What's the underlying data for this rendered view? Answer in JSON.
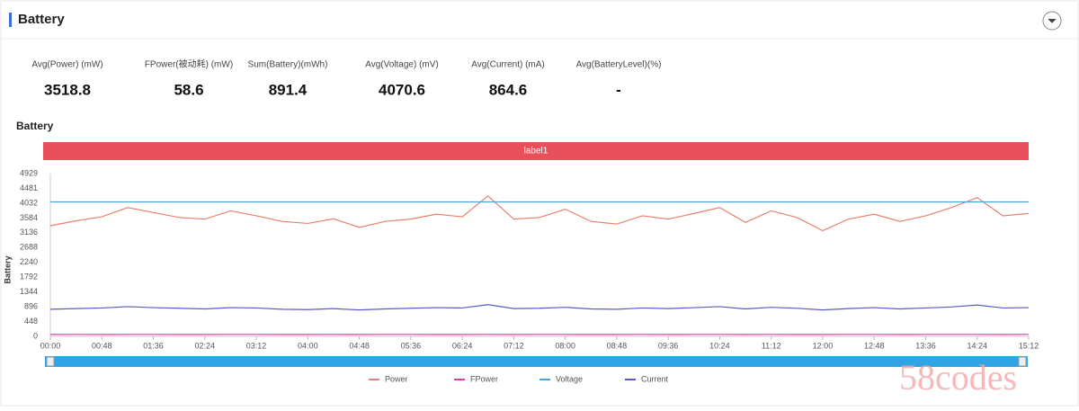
{
  "header": {
    "title": "Battery"
  },
  "stats": [
    {
      "label": "Avg(Power) (mW)",
      "value": 3518.8
    },
    {
      "label": "FPower(被动耗) (mW)",
      "value": 58.6
    },
    {
      "label": "Sum(Battery)(mWh)",
      "value": 891.4
    },
    {
      "label": "Avg(Voltage) (mV)",
      "value": 4070.6
    },
    {
      "label": "Avg(Current) (mA)",
      "value": 864.6
    },
    {
      "label": "Avg(BatteryLevel)(%)",
      "value": "-"
    }
  ],
  "watermark": "58codes",
  "chart_data": {
    "type": "line",
    "title": "Battery",
    "band_label": "label1",
    "y_label": "Battery",
    "x": [
      0,
      24,
      48,
      72,
      96,
      120,
      144,
      168,
      192,
      216,
      240,
      264,
      288,
      312,
      336,
      360,
      384,
      408,
      432,
      456,
      480,
      504,
      528,
      552,
      576,
      600,
      624,
      648,
      672,
      696,
      720,
      744,
      768,
      792,
      816,
      840,
      864,
      888,
      912
    ],
    "xlim": [
      0,
      912
    ],
    "xticks": [
      {
        "value": 0,
        "label": "00:00"
      },
      {
        "value": 48,
        "label": "00:48"
      },
      {
        "value": 96,
        "label": "01:36"
      },
      {
        "value": 144,
        "label": "02:24"
      },
      {
        "value": 192,
        "label": "03:12"
      },
      {
        "value": 240,
        "label": "04:00"
      },
      {
        "value": 288,
        "label": "04:48"
      },
      {
        "value": 336,
        "label": "05:36"
      },
      {
        "value": 384,
        "label": "06:24"
      },
      {
        "value": 432,
        "label": "07:12"
      },
      {
        "value": 480,
        "label": "08:00"
      },
      {
        "value": 528,
        "label": "08:48"
      },
      {
        "value": 576,
        "label": "09:36"
      },
      {
        "value": 624,
        "label": "10:24"
      },
      {
        "value": 672,
        "label": "11:12"
      },
      {
        "value": 720,
        "label": "12:00"
      },
      {
        "value": 768,
        "label": "12:48"
      },
      {
        "value": 816,
        "label": "13:36"
      },
      {
        "value": 864,
        "label": "14:24"
      },
      {
        "value": 912,
        "label": "15:12"
      }
    ],
    "ylim": [
      0,
      4929
    ],
    "yticks": [
      0,
      448,
      896,
      1344,
      1792,
      2240,
      2688,
      3136,
      3584,
      4032,
      4481,
      4929
    ],
    "grid": false,
    "legend": "bottom",
    "series": [
      {
        "name": "Power",
        "color": "#e8826b",
        "values": [
          3350,
          3500,
          3620,
          3900,
          3750,
          3600,
          3550,
          3800,
          3650,
          3480,
          3420,
          3560,
          3300,
          3480,
          3550,
          3700,
          3620,
          4250,
          3550,
          3600,
          3850,
          3480,
          3400,
          3650,
          3550,
          3720,
          3900,
          3450,
          3800,
          3600,
          3200,
          3550,
          3700,
          3480,
          3650,
          3900,
          4200,
          3650,
          3720
        ]
      },
      {
        "name": "FPower",
        "color": "#e040a0",
        "values": [
          58,
          59,
          58,
          59,
          59,
          58,
          58,
          59,
          59,
          58,
          58,
          59,
          58,
          59,
          59,
          58,
          58,
          60,
          58,
          59,
          59,
          58,
          58,
          59,
          58,
          59,
          59,
          58,
          59,
          58,
          58,
          59,
          59,
          58,
          59,
          59,
          60,
          58,
          59
        ]
      },
      {
        "name": "Voltage",
        "color": "#4aa3e0",
        "values": [
          4071,
          4071,
          4071,
          4071,
          4071,
          4071,
          4071,
          4071,
          4071,
          4071,
          4071,
          4071,
          4071,
          4071,
          4071,
          4071,
          4071,
          4071,
          4071,
          4071,
          4071,
          4071,
          4071,
          4071,
          4071,
          4071,
          4071,
          4071,
          4071,
          4071,
          4071,
          4071,
          4071,
          4071,
          4071,
          4071,
          4071,
          4071,
          4071
        ]
      },
      {
        "name": "Current",
        "color": "#5b5bc8",
        "values": [
          820,
          840,
          860,
          900,
          870,
          850,
          830,
          870,
          860,
          820,
          810,
          840,
          800,
          830,
          850,
          870,
          860,
          960,
          840,
          850,
          880,
          830,
          820,
          860,
          840,
          870,
          900,
          830,
          880,
          850,
          800,
          840,
          870,
          830,
          860,
          890,
          950,
          860,
          870
        ]
      }
    ]
  }
}
